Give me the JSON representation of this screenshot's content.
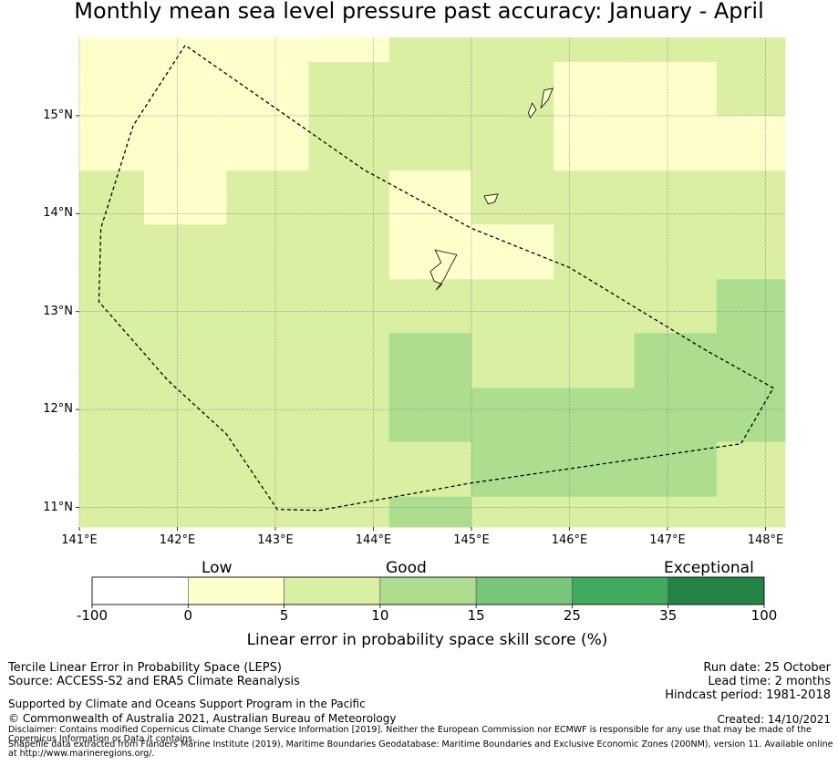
{
  "title": "Monthly mean sea level pressure past accuracy: January - April",
  "map": {
    "lon_range": [
      141.0,
      148.2
    ],
    "lat_range": [
      10.8,
      15.8
    ],
    "x_ticks": [
      "141°E",
      "142°E",
      "143°E",
      "144°E",
      "145°E",
      "146°E",
      "147°E",
      "148°E"
    ],
    "y_ticks": [
      "15°N",
      "14°N",
      "13°N",
      "12°N",
      "11°N"
    ],
    "grid": true,
    "colors": {
      "low": "#ffffcc",
      "good_1": "#d9f0a3",
      "good_2": "#addd8e",
      "outline": "#000000",
      "grid": "#888888"
    },
    "score_grid_lon_edges": [
      141.0,
      141.66,
      142.5,
      143.34,
      144.16,
      145.0,
      145.84,
      146.66,
      147.5,
      148.2
    ],
    "score_grid_lat_edges": [
      15.8,
      15.55,
      15.0,
      14.44,
      13.89,
      13.33,
      12.78,
      12.22,
      11.67,
      11.11,
      10.8
    ],
    "score_grid_categories": [
      [
        0,
        0,
        0,
        0,
        1,
        1,
        1,
        1,
        1
      ],
      [
        0,
        0,
        0,
        1,
        1,
        1,
        0,
        0,
        1
      ],
      [
        0,
        0,
        0,
        1,
        1,
        1,
        0,
        0,
        0
      ],
      [
        1,
        0,
        1,
        1,
        0,
        1,
        1,
        1,
        1
      ],
      [
        1,
        1,
        1,
        1,
        0,
        0,
        1,
        1,
        1
      ],
      [
        1,
        1,
        1,
        1,
        1,
        1,
        1,
        1,
        2
      ],
      [
        1,
        1,
        1,
        1,
        2,
        1,
        1,
        2,
        2
      ],
      [
        1,
        1,
        1,
        1,
        2,
        2,
        2,
        2,
        2
      ],
      [
        1,
        1,
        1,
        1,
        1,
        2,
        2,
        2,
        1
      ],
      [
        1,
        1,
        1,
        1,
        2,
        1,
        1,
        1,
        1
      ]
    ],
    "boundary": [
      [
        142.08,
        15.72
      ],
      [
        141.55,
        14.9
      ],
      [
        141.22,
        13.85
      ],
      [
        141.2,
        13.1
      ],
      [
        141.9,
        12.3
      ],
      [
        142.5,
        11.75
      ],
      [
        143.02,
        10.98
      ],
      [
        143.45,
        10.97
      ],
      [
        145.0,
        11.25
      ],
      [
        147.75,
        11.65
      ],
      [
        148.08,
        12.22
      ],
      [
        147.4,
        12.6
      ],
      [
        146.0,
        13.45
      ],
      [
        145.0,
        13.85
      ],
      [
        143.9,
        14.45
      ],
      [
        142.08,
        15.72
      ]
    ],
    "islands": [
      {
        "name": "Guam",
        "points": [
          [
            144.63,
            13.63
          ],
          [
            144.85,
            13.58
          ],
          [
            144.78,
            13.45
          ],
          [
            144.72,
            13.33
          ],
          [
            144.64,
            13.22
          ],
          [
            144.7,
            13.28
          ],
          [
            144.62,
            13.31
          ],
          [
            144.58,
            13.41
          ],
          [
            144.69,
            13.5
          ],
          [
            144.63,
            13.63
          ]
        ]
      },
      {
        "name": "Rota",
        "points": [
          [
            145.13,
            14.18
          ],
          [
            145.27,
            14.2
          ],
          [
            145.24,
            14.12
          ],
          [
            145.17,
            14.1
          ],
          [
            145.13,
            14.18
          ]
        ]
      },
      {
        "name": "Tinian",
        "points": [
          [
            145.6,
            14.98
          ],
          [
            145.66,
            15.06
          ],
          [
            145.62,
            15.13
          ],
          [
            145.58,
            15.03
          ],
          [
            145.6,
            14.98
          ]
        ]
      },
      {
        "name": "Saipan",
        "points": [
          [
            145.71,
            15.08
          ],
          [
            145.74,
            15.26
          ],
          [
            145.83,
            15.28
          ],
          [
            145.78,
            15.16
          ],
          [
            145.71,
            15.08
          ]
        ]
      }
    ]
  },
  "colorbar": {
    "group_labels": [
      "Low",
      "Good",
      "Exceptional"
    ],
    "tick_labels": [
      "-100",
      "0",
      "5",
      "10",
      "15",
      "25",
      "35",
      "100"
    ],
    "colors": [
      "#ffffff",
      "#ffffcc",
      "#d9f0a3",
      "#addd8e",
      "#78c679",
      "#41ab5d",
      "#238443"
    ],
    "title": "Linear error in probability space skill score (%)"
  },
  "footer": {
    "left": [
      "Tercile Linear Error in Probability Space (LEPS)",
      "Source: ACCESS-S2 and ERA5 Climate Reanalysis"
    ],
    "right": [
      "Run date: 25 October",
      "Lead time: 2 months",
      "Hindcast period: 1981-2018"
    ],
    "supported": "Supported by Climate and Oceans Support Program in the Pacific",
    "copyright": "© Commonwealth of Australia 2021, Australian Bureau of Meteorology",
    "created": "Created: 14/10/2021",
    "disclaimer": "Disclaimer: Contains modified Copernicus Climate Change Service Information [2019]. Neither the European Commission nor ECMWF is responsible for any use that may be made of the Copernicus Information or Data it contains.",
    "shapefile": "Shapefile data extracted from Flanders Marine Institute (2019), Maritime Boundaries Geodatabase: Maritime Boundaries and Exclusive Economic Zones (200NM), version 11. Available online at http://www.marineregions.org/."
  }
}
